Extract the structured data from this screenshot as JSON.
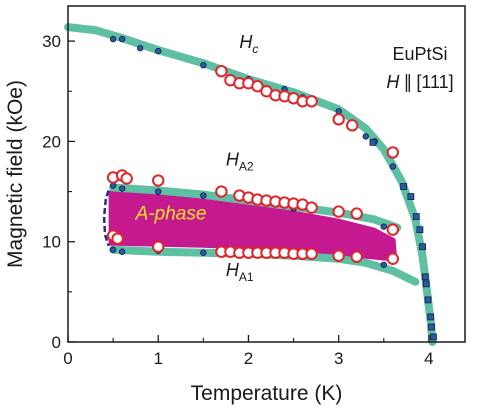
{
  "chart_data": {
    "type": "scatter",
    "xlabel": "Temperature (K)",
    "ylabel": "Magnetic field (kOe)",
    "xlim": [
      0,
      4.4
    ],
    "ylim": [
      0,
      33.5
    ],
    "xticks": [
      0,
      1,
      2,
      3,
      4
    ],
    "yticks": [
      0,
      10,
      20,
      30
    ],
    "grid": false,
    "title_line1": "EuPtSi",
    "title_line2_text": "H",
    "title_line2_parallel": "∥",
    "title_line2_dir": "[111]",
    "colors": {
      "phase_boundary": "#5fbfa3",
      "a_phase_fill": "#c4198f",
      "a_phase_label": "#f6e51f",
      "dot_fill": "#2d5aa0",
      "dot_stroke": "#0d1f4a",
      "circle_stroke": "#e0242c",
      "dashed_edge": "#2a2a8a"
    },
    "labels": {
      "hc": {
        "main": "H",
        "sub": "c",
        "x": 1.9,
        "y": 29.3
      },
      "ha2": {
        "main": "H",
        "sub": "A2",
        "x": 1.75,
        "y": 17.6
      },
      "ha1": {
        "main": "H",
        "sub": "A1",
        "x": 1.75,
        "y": 6.6
      },
      "aphase": {
        "text": "A-phase",
        "x": 0.75,
        "y": 12.2
      }
    },
    "boundaries": {
      "hc": [
        [
          0.0,
          31.4
        ],
        [
          0.3,
          31.1
        ],
        [
          0.6,
          30.3
        ],
        [
          1.0,
          29.1
        ],
        [
          1.5,
          27.8
        ],
        [
          2.0,
          26.2
        ],
        [
          2.5,
          24.9
        ],
        [
          3.0,
          23.2
        ],
        [
          3.3,
          21.3
        ],
        [
          3.5,
          19.2
        ],
        [
          3.7,
          16.0
        ],
        [
          3.85,
          12.2
        ],
        [
          3.93,
          8.5
        ],
        [
          3.98,
          5.0
        ],
        [
          4.02,
          2.0
        ],
        [
          4.04,
          0.0
        ]
      ],
      "ha2": [
        [
          0.5,
          15.4
        ],
        [
          1.0,
          15.1
        ],
        [
          1.5,
          14.7
        ],
        [
          2.0,
          14.1
        ],
        [
          2.5,
          13.5
        ],
        [
          3.0,
          12.9
        ],
        [
          3.4,
          12.2
        ],
        [
          3.65,
          11.4
        ]
      ],
      "ha1": [
        [
          0.5,
          9.2
        ],
        [
          1.0,
          9.0
        ],
        [
          1.5,
          8.9
        ],
        [
          2.0,
          8.8
        ],
        [
          2.5,
          8.6
        ],
        [
          3.0,
          8.3
        ],
        [
          3.3,
          7.9
        ],
        [
          3.6,
          7.1
        ],
        [
          3.85,
          6.0
        ]
      ],
      "a_region": [
        [
          0.45,
          15.1
        ],
        [
          1.0,
          14.8
        ],
        [
          1.5,
          14.3
        ],
        [
          2.0,
          13.7
        ],
        [
          2.5,
          13.1
        ],
        [
          3.0,
          12.3
        ],
        [
          3.4,
          11.4
        ],
        [
          3.63,
          10.3
        ],
        [
          3.65,
          8.0
        ],
        [
          3.3,
          8.3
        ],
        [
          3.0,
          8.6
        ],
        [
          2.5,
          9.0
        ],
        [
          2.0,
          9.2
        ],
        [
          1.5,
          9.4
        ],
        [
          1.0,
          9.5
        ],
        [
          0.5,
          9.6
        ],
        [
          0.45,
          9.6
        ]
      ],
      "dashed_edge": [
        [
          0.45,
          15.1
        ],
        [
          0.42,
          14.3
        ],
        [
          0.4,
          12.5
        ],
        [
          0.41,
          10.7
        ],
        [
          0.45,
          9.6
        ]
      ]
    },
    "series": [
      {
        "marker": "dot",
        "points": [
          [
            0.5,
            30.2
          ],
          [
            0.6,
            30.2
          ],
          [
            0.8,
            29.3
          ],
          [
            1.0,
            29.0
          ],
          [
            1.5,
            27.6
          ],
          [
            2.0,
            26.2
          ],
          [
            2.4,
            25.2
          ],
          [
            2.6,
            24.4
          ],
          [
            3.0,
            23.0
          ],
          [
            3.3,
            20.5
          ],
          [
            3.4,
            20.0
          ],
          [
            3.6,
            17.5
          ],
          [
            0.5,
            15.6
          ],
          [
            0.6,
            15.3
          ],
          [
            1.0,
            15.0
          ],
          [
            1.5,
            14.6
          ],
          [
            2.0,
            14.1
          ],
          [
            2.5,
            13.3
          ],
          [
            3.0,
            12.8
          ],
          [
            3.5,
            11.5
          ],
          [
            0.5,
            9.2
          ],
          [
            0.6,
            9.0
          ],
          [
            1.0,
            9.1
          ],
          [
            1.5,
            8.9
          ],
          [
            2.0,
            8.8
          ],
          [
            2.5,
            8.6
          ],
          [
            3.0,
            8.3
          ],
          [
            3.5,
            7.7
          ]
        ]
      },
      {
        "marker": "square",
        "points": [
          [
            3.38,
            19.9
          ],
          [
            3.72,
            15.5
          ],
          [
            3.8,
            14.5
          ],
          [
            3.86,
            12.5
          ],
          [
            3.9,
            11.2
          ],
          [
            3.93,
            9.5
          ],
          [
            3.96,
            6.5
          ],
          [
            3.97,
            5.8
          ],
          [
            3.99,
            4.2
          ],
          [
            4.02,
            2.5
          ],
          [
            4.03,
            1.5
          ],
          [
            4.05,
            0.5
          ]
        ]
      },
      {
        "marker": "open-circle",
        "points": [
          [
            1.7,
            27.0
          ],
          [
            1.8,
            26.1
          ],
          [
            1.9,
            25.8
          ],
          [
            2.0,
            25.8
          ],
          [
            2.1,
            25.5
          ],
          [
            2.2,
            25.0
          ],
          [
            2.3,
            24.6
          ],
          [
            2.4,
            24.5
          ],
          [
            2.5,
            24.3
          ],
          [
            2.6,
            24.0
          ],
          [
            2.7,
            24.0
          ],
          [
            3.0,
            22.2
          ],
          [
            3.15,
            21.6
          ],
          [
            3.6,
            18.9
          ],
          [
            0.5,
            16.4
          ],
          [
            0.6,
            16.6
          ],
          [
            0.65,
            16.3
          ],
          [
            1.0,
            16.1
          ],
          [
            1.7,
            15.0
          ],
          [
            1.9,
            14.6
          ],
          [
            2.0,
            14.4
          ],
          [
            2.1,
            14.2
          ],
          [
            2.2,
            14.1
          ],
          [
            2.3,
            14.0
          ],
          [
            2.4,
            13.9
          ],
          [
            2.5,
            13.8
          ],
          [
            2.6,
            13.7
          ],
          [
            2.7,
            13.4
          ],
          [
            3.0,
            13.0
          ],
          [
            3.2,
            12.8
          ],
          [
            3.6,
            11.2
          ],
          [
            0.5,
            10.6
          ],
          [
            0.55,
            10.3
          ],
          [
            1.0,
            9.5
          ],
          [
            1.7,
            9.0
          ],
          [
            1.8,
            9.0
          ],
          [
            1.9,
            8.9
          ],
          [
            2.0,
            8.9
          ],
          [
            2.1,
            8.9
          ],
          [
            2.2,
            8.9
          ],
          [
            2.3,
            8.9
          ],
          [
            2.4,
            8.9
          ],
          [
            2.5,
            8.8
          ],
          [
            2.6,
            8.8
          ],
          [
            2.7,
            8.8
          ],
          [
            3.0,
            8.6
          ],
          [
            3.2,
            8.5
          ],
          [
            3.6,
            8.3
          ]
        ]
      }
    ]
  }
}
